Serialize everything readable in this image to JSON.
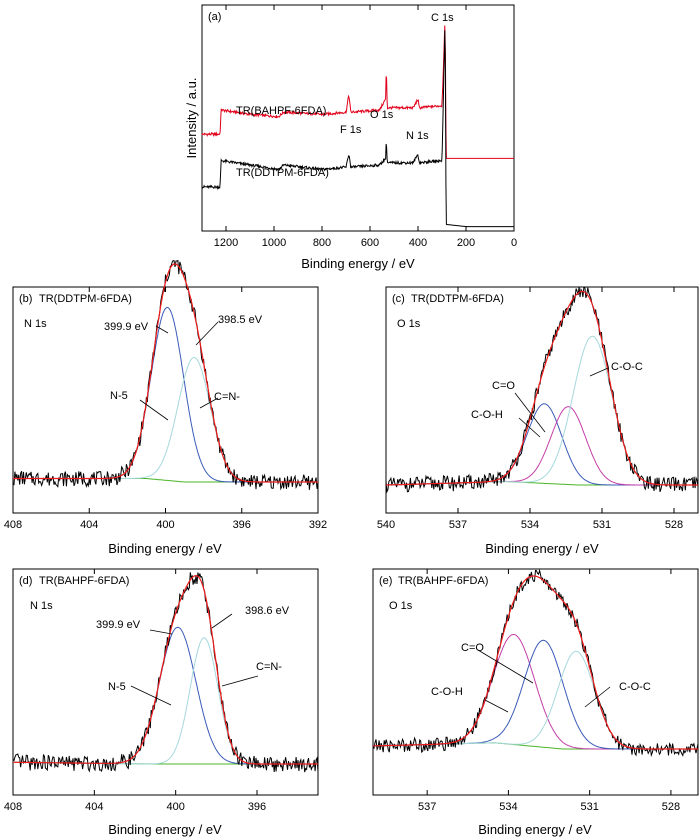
{
  "figure": {
    "caption_x_label": "Binding energy / eV",
    "survey_y_label": "Intensity / a.u."
  },
  "colors": {
    "spectrum_black": "#000000",
    "survey_red": "#e0001a",
    "envelope_red": "#ee1c1c",
    "n5_blue": "#3a5bb8",
    "cn_cyan": "#a6d8dc",
    "co_magenta": "#c43ea8",
    "background_green": "#49b526"
  },
  "chart_data": [
    {
      "panel": "(a)",
      "type": "line",
      "title": "",
      "xlabel": "Binding energy / eV",
      "ylabel": "Intensity / a.u.",
      "xlim": [
        1300,
        0
      ],
      "xticks": [
        1200,
        1000,
        800,
        600,
        400,
        200,
        0
      ],
      "y_ticks_shown": false,
      "peak_labels": [
        {
          "text": "C 1s",
          "x": 285
        },
        {
          "text": "O 1s",
          "x": 532
        },
        {
          "text": "F 1s",
          "x": 688
        },
        {
          "text": "N 1s",
          "x": 400
        }
      ],
      "series": [
        {
          "name": "TR(BAHPF-6FDA)",
          "color": "survey_red",
          "points": [
            [
              1300,
              0.44
            ],
            [
              1225,
              0.44
            ],
            [
              1220,
              0.55
            ],
            [
              1100,
              0.53
            ],
            [
              980,
              0.52
            ],
            [
              960,
              0.54
            ],
            [
              800,
              0.53
            ],
            [
              700,
              0.54
            ],
            [
              688,
              0.62
            ],
            [
              680,
              0.54
            ],
            [
              560,
              0.55
            ],
            [
              535,
              0.6
            ],
            [
              532,
              0.75
            ],
            [
              528,
              0.56
            ],
            [
              420,
              0.56
            ],
            [
              400,
              0.6
            ],
            [
              395,
              0.56
            ],
            [
              300,
              0.57
            ],
            [
              287,
              0.97
            ],
            [
              283,
              0.33
            ],
            [
              200,
              0.33
            ],
            [
              0,
              0.33
            ]
          ]
        },
        {
          "name": "TR(DDTPM-6FDA)",
          "color": "spectrum_black",
          "points": [
            [
              1300,
              0.2
            ],
            [
              1225,
              0.2
            ],
            [
              1220,
              0.32
            ],
            [
              1100,
              0.3
            ],
            [
              980,
              0.28
            ],
            [
              960,
              0.3
            ],
            [
              800,
              0.28
            ],
            [
              700,
              0.29
            ],
            [
              688,
              0.35
            ],
            [
              680,
              0.29
            ],
            [
              560,
              0.3
            ],
            [
              535,
              0.33
            ],
            [
              532,
              0.42
            ],
            [
              528,
              0.31
            ],
            [
              420,
              0.31
            ],
            [
              400,
              0.35
            ],
            [
              395,
              0.31
            ],
            [
              300,
              0.32
            ],
            [
              287,
              0.97
            ],
            [
              283,
              0.03
            ],
            [
              200,
              0.02
            ],
            [
              0,
              0.02
            ]
          ]
        }
      ]
    },
    {
      "panel": "(b)",
      "sample": "TR(DDTPM-6FDA)",
      "core_level": "N 1s",
      "type": "line",
      "xlabel": "Binding energy / eV",
      "xlim": [
        408,
        392
      ],
      "xticks": [
        408,
        404,
        400,
        396,
        392
      ],
      "components": [
        {
          "name": "N-5",
          "center": 399.9,
          "amplitude": 1.0,
          "width": 1.0,
          "color": "n5_blue"
        },
        {
          "name": "C=N-",
          "center": 398.5,
          "amplitude": 0.72,
          "width": 1.0,
          "color": "cn_cyan"
        }
      ],
      "background": [
        [
          408,
          0.02
        ],
        [
          401,
          0.02
        ],
        [
          399,
          0.0
        ],
        [
          392,
          0.0
        ]
      ],
      "peak_annotations": [
        {
          "text": "399.9 eV",
          "x": 399.9
        },
        {
          "text": "398.5 eV",
          "x": 398.5
        }
      ],
      "component_labels": [
        "N-5",
        "C=N-"
      ]
    },
    {
      "panel": "(c)",
      "sample": "TR(DDTPM-6FDA)",
      "core_level": "O 1s",
      "type": "line",
      "xlabel": "Binding energy / eV",
      "xlim": [
        540,
        527
      ],
      "xticks": [
        540,
        537,
        534,
        531,
        528
      ],
      "components": [
        {
          "name": "C-O-H",
          "center": 533.4,
          "amplitude": 0.46,
          "width": 0.85,
          "color": "n5_blue"
        },
        {
          "name": "C=O",
          "center": 532.4,
          "amplitude": 0.45,
          "width": 0.85,
          "color": "co_magenta"
        },
        {
          "name": "C-O-C",
          "center": 531.4,
          "amplitude": 0.86,
          "width": 0.95,
          "color": "cn_cyan"
        }
      ],
      "background": [
        [
          540,
          0.0
        ],
        [
          535,
          0.02
        ],
        [
          532,
          0.0
        ],
        [
          527,
          0.0
        ]
      ],
      "component_labels": [
        "C=O",
        "C-O-H",
        "C-O-C"
      ]
    },
    {
      "panel": "(d)",
      "sample": "TR(BAHPF-6FDA)",
      "core_level": "N 1s",
      "type": "line",
      "xlabel": "Binding energy / eV",
      "xlim": [
        408,
        393
      ],
      "xticks": [
        408,
        404,
        400,
        396
      ],
      "components": [
        {
          "name": "N-5",
          "center": 399.9,
          "amplitude": 0.79,
          "width": 1.05,
          "color": "n5_blue"
        },
        {
          "name": "C=N-",
          "center": 398.6,
          "amplitude": 0.73,
          "width": 0.8,
          "color": "cn_cyan"
        }
      ],
      "background": [
        [
          408,
          0.01
        ],
        [
          401,
          0.0
        ],
        [
          393,
          0.0
        ]
      ],
      "peak_annotations": [
        {
          "text": "399.9 eV",
          "x": 399.9
        },
        {
          "text": "398.6 eV",
          "x": 398.6
        }
      ],
      "component_labels": [
        "N-5",
        "C=N-"
      ]
    },
    {
      "panel": "(e)",
      "sample": "TR(BAHPF-6FDA)",
      "core_level": "O 1s",
      "type": "line",
      "xlabel": "Binding energy / eV",
      "xlim": [
        539,
        527
      ],
      "xticks": [
        537,
        534,
        531,
        528
      ],
      "components": [
        {
          "name": "C-O-H",
          "center": 533.8,
          "amplitude": 0.71,
          "width": 0.9,
          "color": "co_magenta"
        },
        {
          "name": "C=O",
          "center": 532.7,
          "amplitude": 0.69,
          "width": 0.85,
          "color": "n5_blue"
        },
        {
          "name": "C-O-C",
          "center": 531.5,
          "amplitude": 0.63,
          "width": 0.8,
          "color": "cn_cyan"
        }
      ],
      "background": [
        [
          539,
          0.02
        ],
        [
          534.5,
          0.04
        ],
        [
          532,
          0.0
        ],
        [
          527,
          0.0
        ]
      ],
      "component_labels": [
        "C=O",
        "C-O-H",
        "C-O-C"
      ]
    }
  ]
}
